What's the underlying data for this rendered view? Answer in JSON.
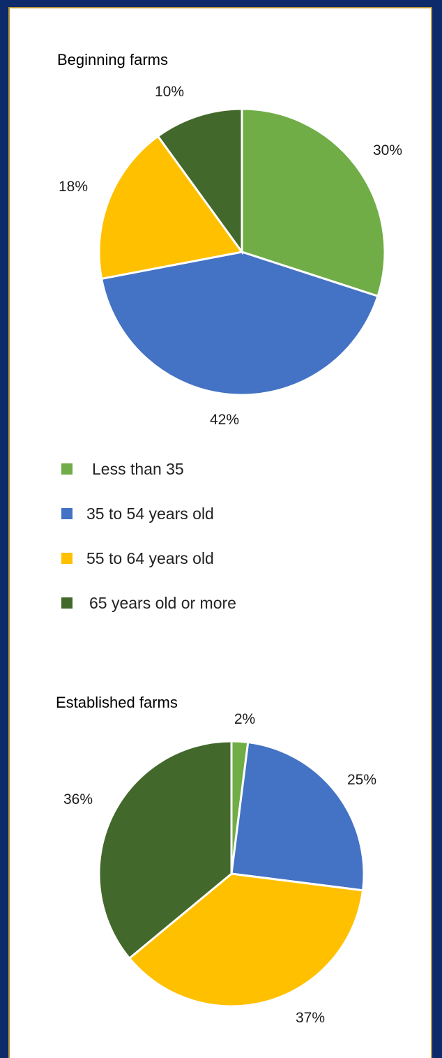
{
  "chart_data": [
    {
      "type": "pie",
      "title": "Beginning farms",
      "categories": [
        "Less than 35",
        "35 to 54 years old",
        "55 to 64 years old",
        "65 years old or more"
      ],
      "values": [
        30,
        42,
        18,
        10
      ],
      "labels": [
        "30%",
        "42%",
        "18%",
        "10%"
      ]
    },
    {
      "type": "pie",
      "title": "Established farms",
      "categories": [
        "Less than 35",
        "35 to 54 years old",
        "55 to 64 years old",
        "65 years old or more"
      ],
      "values": [
        2,
        25,
        37,
        36
      ],
      "labels": [
        "2%",
        "25%",
        "37%",
        "36%"
      ]
    }
  ],
  "legend": {
    "position": "below-first-chart",
    "items": [
      {
        "label": "Less than 35",
        "color": "#70ad47"
      },
      {
        "label": "35 to 54 years old",
        "color": "#4472c4"
      },
      {
        "label": "55 to 64 years old",
        "color": "#ffc000"
      },
      {
        "label": "65 years old or more",
        "color": "#43682b"
      }
    ]
  },
  "colors": {
    "background": "#0d2b6b",
    "panel": "#ffffff",
    "border": "#b8953a"
  }
}
